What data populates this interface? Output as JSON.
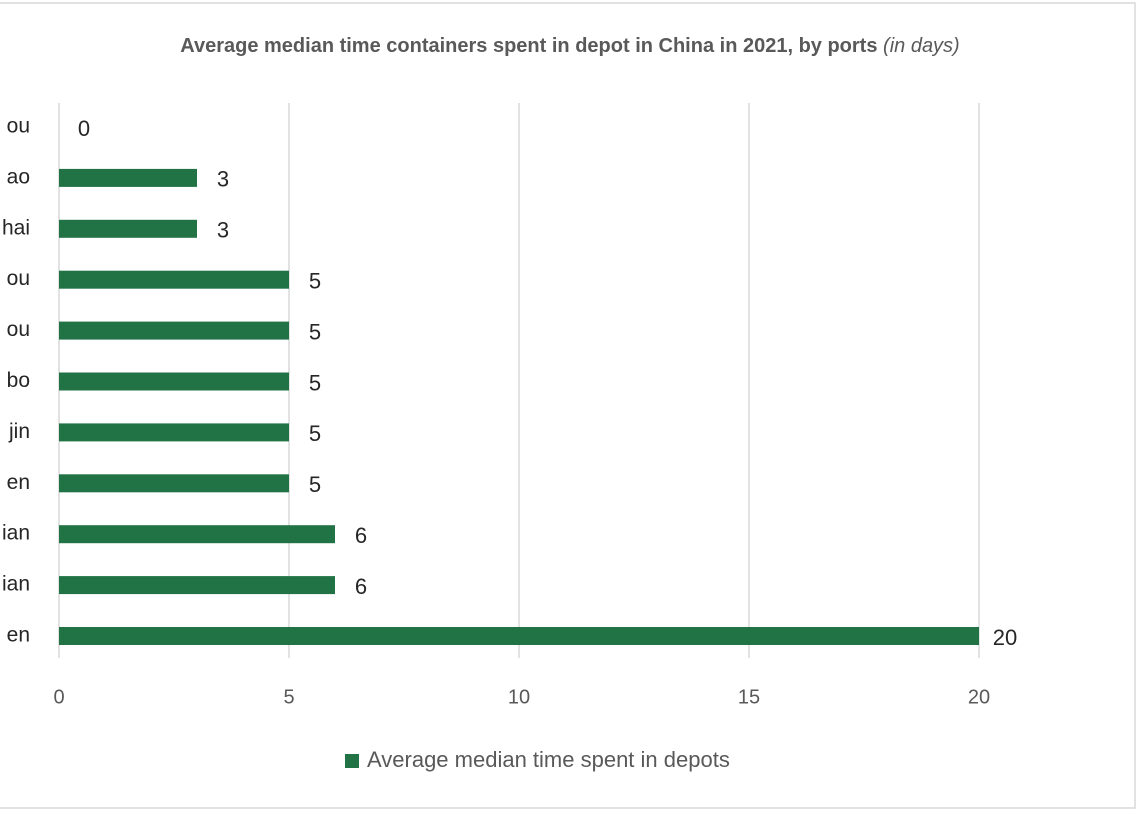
{
  "chart_data": {
    "type": "bar",
    "orientation": "horizontal",
    "title": "Average median time containers spent in depot in China in 2021, by ports",
    "title_note": "(in days)",
    "categories": [
      "ou",
      "ao",
      "hai",
      "ou",
      "ou",
      "bo",
      "jin",
      "en",
      "ian",
      "ian",
      "en"
    ],
    "series": [
      {
        "name": "Average median time spent in depots",
        "color": "#217346",
        "values": [
          0,
          3,
          3,
          5,
          5,
          5,
          5,
          5,
          6,
          6,
          20
        ]
      }
    ],
    "xlim": [
      0,
      20
    ],
    "xticks": [
      0,
      5,
      10,
      15,
      20
    ],
    "grid": true,
    "legend": "bottom"
  }
}
